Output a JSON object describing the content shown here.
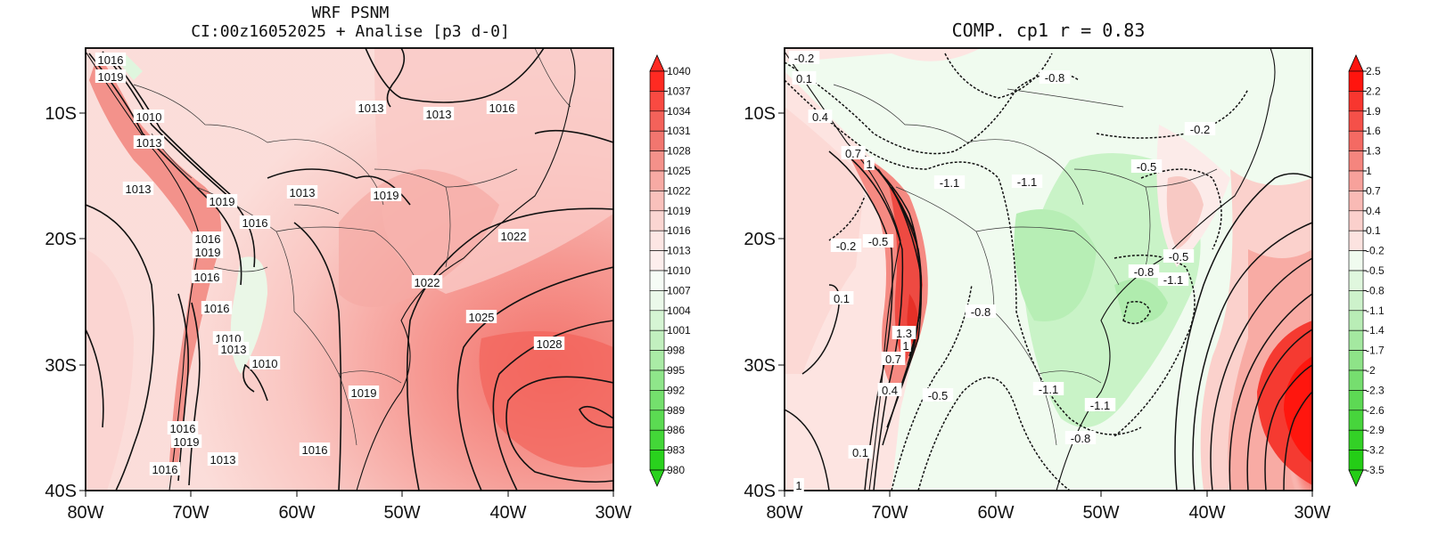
{
  "left_panel": {
    "title_line1": "WRF PSNM",
    "title_line2": "CI:00z16052025 + Analise  [p3 d-0]",
    "x_ticks": [
      "80W",
      "70W",
      "60W",
      "50W",
      "40W",
      "30W"
    ],
    "y_ticks": [
      "10S",
      "20S",
      "30S",
      "40S"
    ],
    "colorbar_labels": [
      "1040",
      "1037",
      "1034",
      "1031",
      "1028",
      "1025",
      "1022",
      "1019",
      "1016",
      "1013",
      "1010",
      "1007",
      "1004",
      "1001",
      "998",
      "995",
      "992",
      "989",
      "986",
      "983",
      "980"
    ],
    "contour_labels": [
      "1016",
      "1019",
      "1010",
      "1013",
      "1013",
      "1019",
      "1016",
      "1016",
      "1019",
      "1016",
      "1016",
      "1010",
      "1013",
      "1010",
      "1016",
      "1019",
      "1013",
      "1016",
      "1013",
      "1013",
      "1013",
      "1016",
      "1019",
      "1016",
      "1022",
      "1022",
      "1025",
      "1028",
      "1019"
    ]
  },
  "right_panel": {
    "title": "COMP. cp1  r =  0.83",
    "x_ticks": [
      "80W",
      "70W",
      "60W",
      "50W",
      "40W",
      "30W"
    ],
    "y_ticks": [
      "10S",
      "20S",
      "30S",
      "40S"
    ],
    "colorbar_labels": [
      "2.5",
      "2.2",
      "1.9",
      "1.6",
      "1.3",
      "1",
      "0.7",
      "0.4",
      "0.1",
      "-0.2",
      "-0.5",
      "-0.8",
      "-1.1",
      "-1.4",
      "-1.7",
      "-2",
      "-2.3",
      "-2.6",
      "-2.9",
      "-3.2",
      "-3.5"
    ],
    "contour_labels": [
      "-0.2",
      "0.1",
      "0.4",
      "0.7",
      "1",
      "-1.1",
      "-0.8",
      "-1.1",
      "-0.2",
      "-0.5",
      "-0.2",
      "-0.5",
      "0.1",
      "1.3",
      "1",
      "0.7",
      "0.4",
      "-0.5",
      "-0.8",
      "-0.8",
      "-0.5",
      "-1.1",
      "-1.1",
      "-1.1",
      "-0.8",
      "0.1",
      "1"
    ]
  }
}
